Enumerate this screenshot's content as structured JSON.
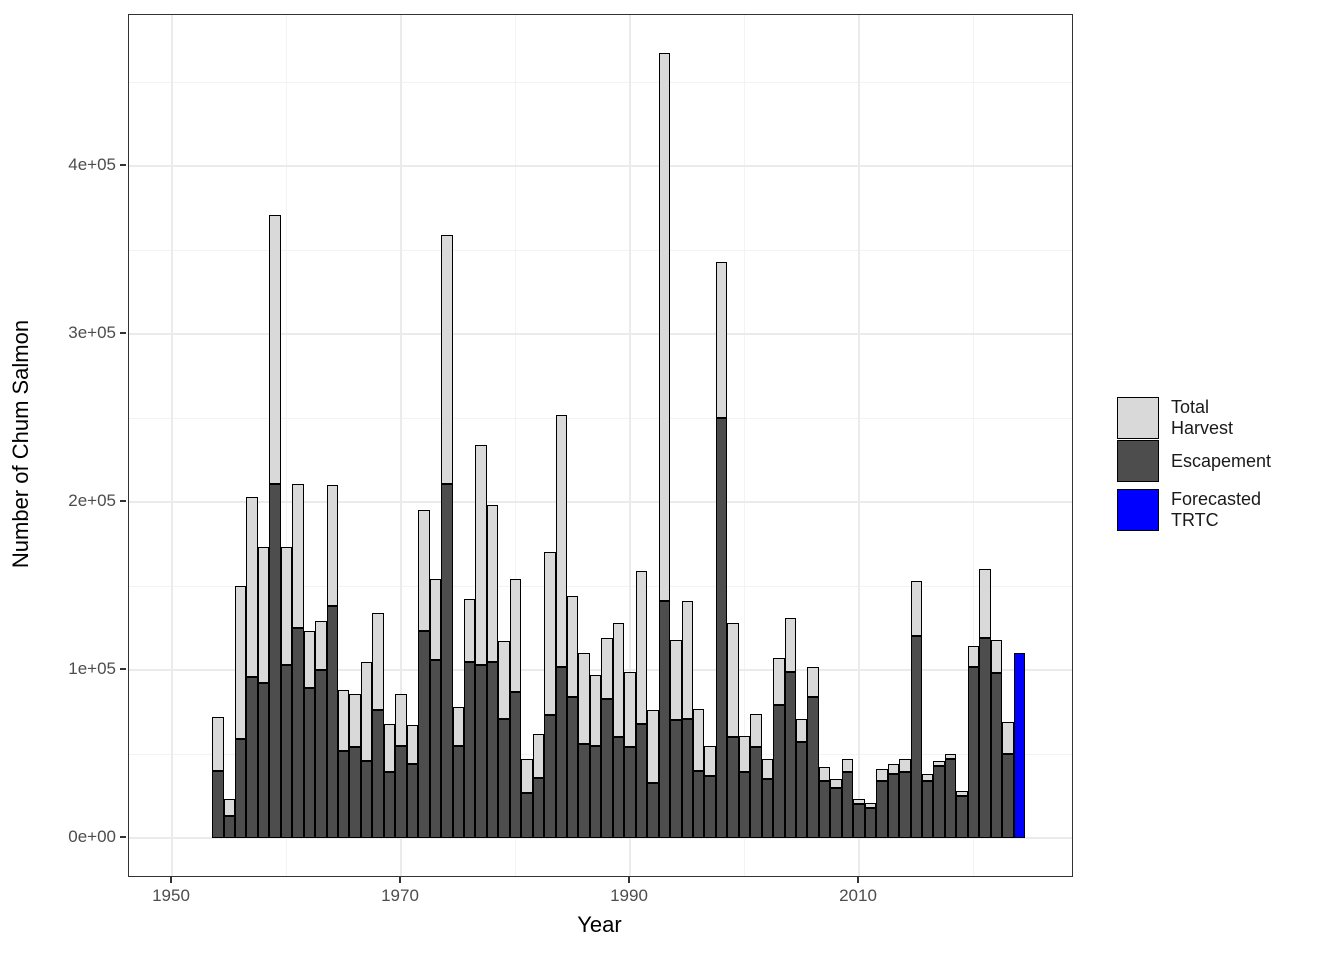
{
  "axes": {
    "x": {
      "label": "Year",
      "tick_values": [
        1950,
        1970,
        1990,
        2010
      ],
      "tick_labels": [
        "1950",
        "1970",
        "1990",
        "2010"
      ],
      "minor_tick_values": [
        1960,
        1980,
        2000,
        2020
      ]
    },
    "y": {
      "label": "Number of Chum Salmon",
      "tick_values": [
        0,
        100000,
        200000,
        300000,
        400000
      ],
      "tick_labels": [
        "0e+00",
        "1e+05",
        "2e+05",
        "3e+05",
        "4e+05"
      ],
      "minor_tick_values": [
        50000,
        150000,
        250000,
        350000,
        450000
      ]
    }
  },
  "legend": {
    "items": [
      {
        "label": "Total Harvest",
        "color": "#d9d9d9"
      },
      {
        "label": "Escapement",
        "color": "#4d4d4d"
      },
      {
        "label": "Forecasted\nTRTC",
        "color": "#0000ff"
      }
    ]
  },
  "colors": {
    "harvest_fill": "#d9d9d9",
    "escapement_fill": "#4d4d4d",
    "forecast_fill": "#0000ff",
    "bar_outline": "#000000",
    "grid_major": "#ebebeb",
    "grid_minor": "#f3f3f3",
    "panel_border": "#333333",
    "tick_text": "#4d4d4d"
  },
  "chart_data": {
    "type": "bar",
    "stacked": true,
    "title": "",
    "xlabel": "Year",
    "ylabel": "Number of Chum Salmon",
    "legend_position": "right",
    "grid": true,
    "xlim": [
      1946,
      2028.5
    ],
    "ylim": [
      0,
      490000
    ],
    "x": [
      1954,
      1955,
      1956,
      1957,
      1958,
      1959,
      1960,
      1961,
      1962,
      1963,
      1964,
      1965,
      1966,
      1967,
      1968,
      1969,
      1970,
      1971,
      1972,
      1973,
      1974,
      1975,
      1976,
      1977,
      1978,
      1979,
      1980,
      1981,
      1982,
      1983,
      1984,
      1985,
      1986,
      1987,
      1988,
      1989,
      1990,
      1991,
      1992,
      1993,
      1994,
      1995,
      1996,
      1997,
      1998,
      1999,
      2000,
      2001,
      2002,
      2003,
      2004,
      2005,
      2006,
      2007,
      2008,
      2009,
      2010,
      2011,
      2012,
      2013,
      2014,
      2015,
      2016,
      2017,
      2018,
      2019,
      2020,
      2021,
      2022,
      2023
    ],
    "series": [
      {
        "name": "Escapement",
        "color": "#4d4d4d",
        "values": [
          40000,
          13000,
          59000,
          96000,
          92000,
          211000,
          103000,
          125000,
          89000,
          100000,
          138000,
          52000,
          54000,
          46000,
          76000,
          39000,
          55000,
          44000,
          123000,
          106000,
          211000,
          55000,
          105000,
          103000,
          105000,
          71000,
          87000,
          27000,
          36000,
          73000,
          102000,
          84000,
          56000,
          55000,
          83000,
          60000,
          54000,
          68000,
          33000,
          141000,
          70000,
          71000,
          40000,
          37000,
          250000,
          60000,
          39000,
          54000,
          35000,
          79000,
          99000,
          57000,
          84000,
          34000,
          30000,
          39000,
          20000,
          18000,
          34000,
          38000,
          39000,
          120000,
          34000,
          43000,
          47000,
          25000,
          102000,
          119000,
          98000,
          50000
        ]
      },
      {
        "name": "Total Harvest",
        "color": "#d9d9d9",
        "values": [
          32000,
          10000,
          91000,
          107000,
          81000,
          160000,
          70000,
          86000,
          34000,
          29000,
          72000,
          36000,
          32000,
          59000,
          58000,
          29000,
          31000,
          23000,
          72000,
          48000,
          148000,
          23000,
          37000,
          131000,
          93000,
          46000,
          67000,
          20000,
          26000,
          97000,
          150000,
          60000,
          54000,
          42000,
          36000,
          68000,
          45000,
          91000,
          43000,
          326000,
          48000,
          70000,
          37000,
          18000,
          93000,
          68000,
          22000,
          20000,
          12000,
          28000,
          32000,
          14000,
          18000,
          8000,
          5000,
          8000,
          3000,
          3000,
          7000,
          6000,
          8000,
          33000,
          4000,
          3000,
          3000,
          3000,
          12000,
          41000,
          20000,
          19000
        ]
      }
    ],
    "forecast": {
      "name": "Forecasted TRTC",
      "year": 2024,
      "value": 110000,
      "color": "#0000ff"
    }
  }
}
